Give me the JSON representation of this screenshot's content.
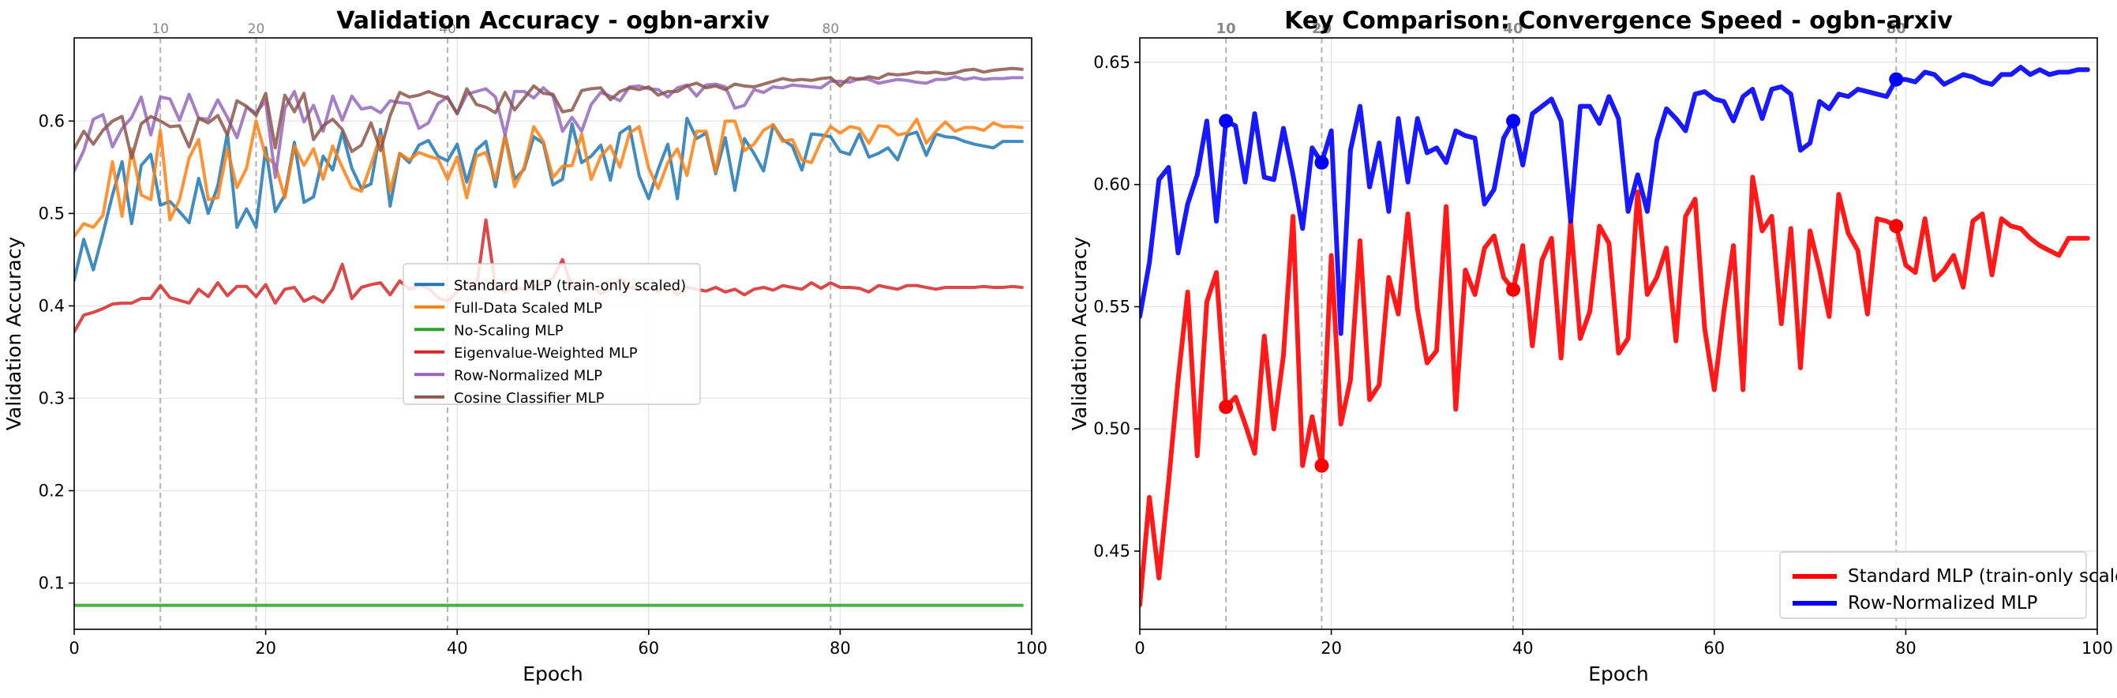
{
  "chart_data": [
    {
      "type": "line",
      "title": "Validation Accuracy - ogbn-arxiv",
      "xlabel": "Epoch",
      "ylabel": "Validation Accuracy",
      "xlim": [
        0,
        100
      ],
      "ylim": [
        0.05,
        0.69
      ],
      "xticks": [
        0,
        20,
        40,
        60,
        80,
        100
      ],
      "yticks": [
        0.1,
        0.2,
        0.3,
        0.4,
        0.5,
        0.6
      ],
      "ytick_labels": [
        "0.1",
        "0.2",
        "0.3",
        "0.4",
        "0.5",
        "0.6"
      ],
      "grid": true,
      "legend_position": "center",
      "vlines": [
        {
          "x": 9,
          "label": "10"
        },
        {
          "x": 19,
          "label": "20"
        },
        {
          "x": 39,
          "label": "40"
        },
        {
          "x": 79,
          "label": "80"
        }
      ],
      "series": [
        {
          "name": "Standard MLP (train-only scaled)",
          "color": "#1f77b4",
          "values": [
            0.428,
            0.472,
            0.439,
            0.478,
            0.52,
            0.556,
            0.489,
            0.552,
            0.564,
            0.509,
            0.513,
            0.502,
            0.49,
            0.538,
            0.5,
            0.53,
            0.587,
            0.485,
            0.505,
            0.485,
            0.571,
            0.502,
            0.52,
            0.577,
            0.512,
            0.518,
            0.562,
            0.547,
            0.588,
            0.549,
            0.527,
            0.532,
            0.591,
            0.508,
            0.565,
            0.555,
            0.574,
            0.579,
            0.562,
            0.557,
            0.575,
            0.534,
            0.569,
            0.578,
            0.529,
            0.585,
            0.537,
            0.548,
            0.583,
            0.576,
            0.531,
            0.537,
            0.597,
            0.555,
            0.562,
            0.574,
            0.536,
            0.587,
            0.594,
            0.541,
            0.516,
            0.548,
            0.575,
            0.516,
            0.603,
            0.581,
            0.587,
            0.543,
            0.582,
            0.525,
            0.581,
            0.565,
            0.546,
            0.596,
            0.58,
            0.573,
            0.547,
            0.586,
            0.585,
            0.583,
            0.567,
            0.564,
            0.586,
            0.561,
            0.565,
            0.571,
            0.558,
            0.585,
            0.588,
            0.563,
            0.586,
            0.583,
            0.582,
            0.578,
            0.575,
            0.573,
            0.571,
            0.578,
            0.578,
            0.578
          ]
        },
        {
          "name": "Full-Data Scaled MLP",
          "color": "#ff7f0e",
          "values": [
            0.475,
            0.489,
            0.485,
            0.498,
            0.556,
            0.497,
            0.57,
            0.52,
            0.515,
            0.59,
            0.493,
            0.515,
            0.56,
            0.58,
            0.515,
            0.517,
            0.57,
            0.528,
            0.549,
            0.6,
            0.562,
            0.553,
            0.517,
            0.573,
            0.552,
            0.57,
            0.537,
            0.573,
            0.55,
            0.528,
            0.524,
            0.553,
            0.584,
            0.524,
            0.565,
            0.558,
            0.566,
            0.562,
            0.559,
            0.537,
            0.561,
            0.517,
            0.562,
            0.566,
            0.536,
            0.584,
            0.529,
            0.55,
            0.594,
            0.578,
            0.539,
            0.551,
            0.552,
            0.586,
            0.537,
            0.562,
            0.573,
            0.55,
            0.587,
            0.594,
            0.549,
            0.527,
            0.555,
            0.57,
            0.541,
            0.589,
            0.589,
            0.545,
            0.6,
            0.6,
            0.568,
            0.575,
            0.59,
            0.596,
            0.578,
            0.58,
            0.558,
            0.555,
            0.578,
            0.594,
            0.587,
            0.594,
            0.592,
            0.576,
            0.595,
            0.594,
            0.585,
            0.587,
            0.602,
            0.576,
            0.589,
            0.599,
            0.589,
            0.593,
            0.593,
            0.59,
            0.598,
            0.594,
            0.594,
            0.593
          ]
        },
        {
          "name": "No-Scaling MLP",
          "color": "#2ca02c",
          "values": [
            0.076,
            0.076,
            0.076,
            0.076,
            0.076,
            0.076,
            0.076,
            0.076,
            0.076,
            0.076,
            0.076,
            0.076,
            0.076,
            0.076,
            0.076,
            0.076,
            0.076,
            0.076,
            0.076,
            0.076,
            0.076,
            0.076,
            0.076,
            0.076,
            0.076,
            0.076,
            0.076,
            0.076,
            0.076,
            0.076,
            0.076,
            0.076,
            0.076,
            0.076,
            0.076,
            0.076,
            0.076,
            0.076,
            0.076,
            0.076,
            0.076,
            0.076,
            0.076,
            0.076,
            0.076,
            0.076,
            0.076,
            0.076,
            0.076,
            0.076,
            0.076,
            0.076,
            0.076,
            0.076,
            0.076,
            0.076,
            0.076,
            0.076,
            0.076,
            0.076,
            0.076,
            0.076,
            0.076,
            0.076,
            0.076,
            0.076,
            0.076,
            0.076,
            0.076,
            0.076,
            0.076,
            0.076,
            0.076,
            0.076,
            0.076,
            0.076,
            0.076,
            0.076,
            0.076,
            0.076,
            0.076,
            0.076,
            0.076,
            0.076,
            0.076,
            0.076,
            0.076,
            0.076,
            0.076,
            0.076,
            0.076,
            0.076,
            0.076,
            0.076,
            0.076,
            0.076,
            0.076,
            0.076,
            0.076,
            0.076
          ]
        },
        {
          "name": "Eigenvalue-Weighted MLP",
          "color": "#d62728",
          "values": [
            0.372,
            0.39,
            0.393,
            0.397,
            0.402,
            0.403,
            0.403,
            0.408,
            0.408,
            0.422,
            0.409,
            0.406,
            0.403,
            0.418,
            0.41,
            0.425,
            0.411,
            0.421,
            0.421,
            0.41,
            0.423,
            0.403,
            0.418,
            0.42,
            0.405,
            0.41,
            0.404,
            0.418,
            0.445,
            0.408,
            0.42,
            0.423,
            0.425,
            0.412,
            0.427,
            0.418,
            0.422,
            0.419,
            0.409,
            0.405,
            0.415,
            0.425,
            0.418,
            0.493,
            0.421,
            0.415,
            0.42,
            0.418,
            0.42,
            0.425,
            0.43,
            0.45,
            0.42,
            0.425,
            0.422,
            0.413,
            0.418,
            0.43,
            0.42,
            0.418,
            0.42,
            0.415,
            0.422,
            0.412,
            0.42,
            0.418,
            0.416,
            0.42,
            0.415,
            0.418,
            0.412,
            0.418,
            0.42,
            0.417,
            0.422,
            0.42,
            0.418,
            0.425,
            0.419,
            0.425,
            0.42,
            0.42,
            0.419,
            0.415,
            0.422,
            0.42,
            0.418,
            0.422,
            0.422,
            0.42,
            0.418,
            0.42,
            0.42,
            0.42,
            0.42,
            0.421,
            0.42,
            0.42,
            0.421,
            0.42
          ]
        },
        {
          "name": "Row-Normalized MLP",
          "color": "#9467bd",
          "values": [
            0.546,
            0.568,
            0.602,
            0.607,
            0.572,
            0.592,
            0.604,
            0.626,
            0.585,
            0.626,
            0.624,
            0.601,
            0.629,
            0.603,
            0.602,
            0.623,
            0.604,
            0.582,
            0.615,
            0.609,
            0.622,
            0.539,
            0.614,
            0.632,
            0.599,
            0.617,
            0.589,
            0.627,
            0.601,
            0.627,
            0.613,
            0.615,
            0.609,
            0.622,
            0.62,
            0.619,
            0.592,
            0.598,
            0.619,
            0.626,
            0.608,
            0.629,
            0.632,
            0.635,
            0.626,
            0.585,
            0.632,
            0.632,
            0.625,
            0.636,
            0.627,
            0.589,
            0.604,
            0.589,
            0.618,
            0.631,
            0.627,
            0.622,
            0.637,
            0.638,
            0.635,
            0.634,
            0.626,
            0.636,
            0.639,
            0.627,
            0.639,
            0.64,
            0.637,
            0.614,
            0.617,
            0.634,
            0.631,
            0.637,
            0.636,
            0.639,
            0.638,
            0.637,
            0.636,
            0.643,
            0.643,
            0.642,
            0.646,
            0.645,
            0.641,
            0.643,
            0.645,
            0.644,
            0.642,
            0.641,
            0.645,
            0.645,
            0.648,
            0.645,
            0.647,
            0.645,
            0.646,
            0.646,
            0.647,
            0.647
          ]
        },
        {
          "name": "Cosine Classifier MLP",
          "color": "#8c564b",
          "values": [
            0.57,
            0.589,
            0.575,
            0.59,
            0.6,
            0.605,
            0.56,
            0.597,
            0.605,
            0.6,
            0.594,
            0.595,
            0.572,
            0.603,
            0.598,
            0.606,
            0.585,
            0.622,
            0.616,
            0.606,
            0.63,
            0.571,
            0.628,
            0.61,
            0.63,
            0.58,
            0.595,
            0.602,
            0.591,
            0.567,
            0.574,
            0.598,
            0.568,
            0.606,
            0.631,
            0.626,
            0.628,
            0.632,
            0.628,
            0.625,
            0.608,
            0.635,
            0.618,
            0.615,
            0.609,
            0.631,
            0.612,
            0.625,
            0.638,
            0.63,
            0.629,
            0.61,
            0.612,
            0.633,
            0.635,
            0.636,
            0.623,
            0.632,
            0.636,
            0.634,
            0.637,
            0.628,
            0.632,
            0.632,
            0.638,
            0.641,
            0.636,
            0.638,
            0.634,
            0.64,
            0.638,
            0.637,
            0.64,
            0.643,
            0.646,
            0.644,
            0.645,
            0.644,
            0.646,
            0.647,
            0.638,
            0.647,
            0.645,
            0.648,
            0.646,
            0.651,
            0.65,
            0.651,
            0.653,
            0.652,
            0.653,
            0.651,
            0.652,
            0.655,
            0.656,
            0.653,
            0.655,
            0.656,
            0.657,
            0.656
          ]
        }
      ]
    },
    {
      "type": "line",
      "title": "Key Comparison: Convergence Speed - ogbn-arxiv",
      "xlabel": "Epoch",
      "ylabel": "Validation Accuracy",
      "xlim": [
        0,
        100
      ],
      "ylim": [
        0.418,
        0.66
      ],
      "xticks": [
        0,
        20,
        40,
        60,
        80,
        100
      ],
      "yticks": [
        0.45,
        0.5,
        0.55,
        0.6,
        0.65
      ],
      "ytick_labels": [
        "0.45",
        "0.50",
        "0.55",
        "0.60",
        "0.65"
      ],
      "grid": true,
      "legend_position": "lower right",
      "vlines": [
        {
          "x": 9,
          "label": "10"
        },
        {
          "x": 19,
          "label": "20"
        },
        {
          "x": 39,
          "label": "40"
        },
        {
          "x": 79,
          "label": "80"
        }
      ],
      "markers": [
        {
          "series": 0,
          "epochs": [
            9,
            19,
            39,
            79
          ]
        },
        {
          "series": 1,
          "epochs": [
            9,
            19,
            39,
            79
          ]
        }
      ],
      "series": [
        {
          "name": "Standard MLP (train-only scaled)",
          "color": "#ff0000",
          "values": [
            0.428,
            0.472,
            0.439,
            0.478,
            0.52,
            0.556,
            0.489,
            0.552,
            0.564,
            0.509,
            0.513,
            0.502,
            0.49,
            0.538,
            0.5,
            0.53,
            0.587,
            0.485,
            0.505,
            0.485,
            0.571,
            0.502,
            0.52,
            0.577,
            0.512,
            0.518,
            0.562,
            0.547,
            0.588,
            0.549,
            0.527,
            0.532,
            0.591,
            0.508,
            0.565,
            0.555,
            0.574,
            0.579,
            0.562,
            0.557,
            0.575,
            0.534,
            0.569,
            0.578,
            0.529,
            0.585,
            0.537,
            0.548,
            0.583,
            0.576,
            0.531,
            0.537,
            0.597,
            0.555,
            0.562,
            0.574,
            0.536,
            0.587,
            0.594,
            0.541,
            0.516,
            0.548,
            0.575,
            0.516,
            0.603,
            0.581,
            0.587,
            0.543,
            0.582,
            0.525,
            0.581,
            0.565,
            0.546,
            0.596,
            0.58,
            0.573,
            0.547,
            0.586,
            0.585,
            0.583,
            0.567,
            0.564,
            0.586,
            0.561,
            0.565,
            0.571,
            0.558,
            0.585,
            0.588,
            0.563,
            0.586,
            0.583,
            0.582,
            0.578,
            0.575,
            0.573,
            0.571,
            0.578,
            0.578,
            0.578
          ]
        },
        {
          "name": "Row-Normalized MLP",
          "color": "#0000ff",
          "values": [
            0.546,
            0.568,
            0.602,
            0.607,
            0.572,
            0.592,
            0.604,
            0.626,
            0.585,
            0.626,
            0.624,
            0.601,
            0.629,
            0.603,
            0.602,
            0.623,
            0.604,
            0.582,
            0.615,
            0.609,
            0.622,
            0.539,
            0.614,
            0.632,
            0.599,
            0.617,
            0.589,
            0.627,
            0.601,
            0.627,
            0.613,
            0.615,
            0.609,
            0.622,
            0.62,
            0.619,
            0.592,
            0.598,
            0.619,
            0.626,
            0.608,
            0.629,
            0.632,
            0.635,
            0.626,
            0.585,
            0.632,
            0.632,
            0.625,
            0.636,
            0.627,
            0.589,
            0.604,
            0.589,
            0.618,
            0.631,
            0.627,
            0.622,
            0.637,
            0.638,
            0.635,
            0.634,
            0.626,
            0.636,
            0.639,
            0.627,
            0.639,
            0.64,
            0.637,
            0.614,
            0.617,
            0.634,
            0.631,
            0.637,
            0.636,
            0.639,
            0.638,
            0.637,
            0.636,
            0.643,
            0.643,
            0.642,
            0.646,
            0.645,
            0.641,
            0.643,
            0.645,
            0.644,
            0.642,
            0.641,
            0.645,
            0.645,
            0.648,
            0.645,
            0.647,
            0.645,
            0.646,
            0.646,
            0.647,
            0.647
          ]
        }
      ]
    }
  ]
}
